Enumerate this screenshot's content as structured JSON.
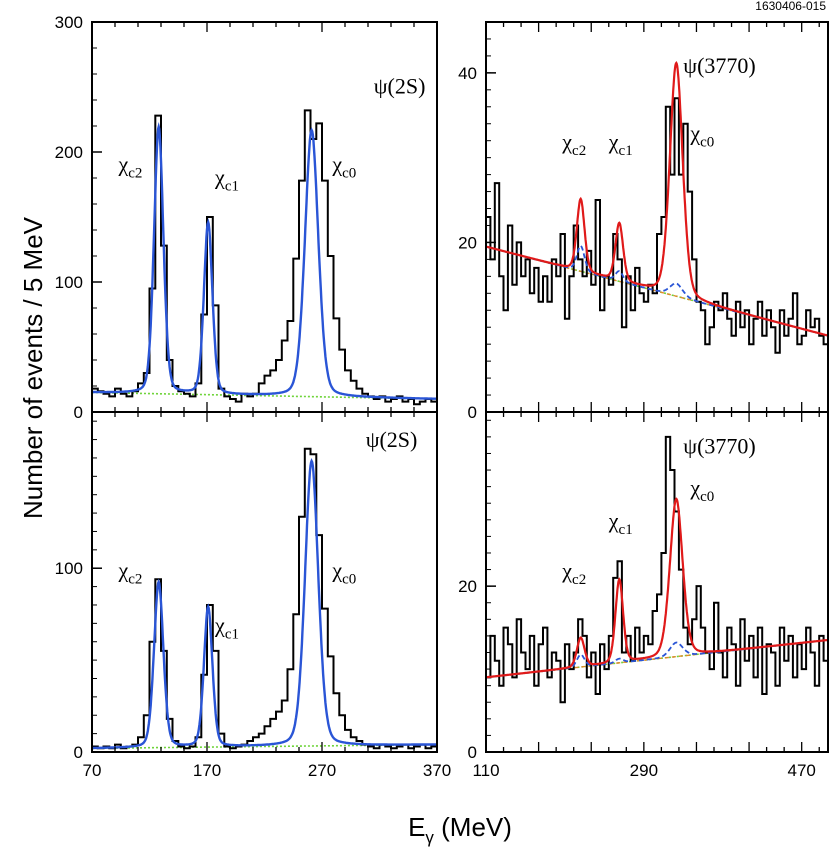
{
  "figure_id": "1630406-015",
  "ylabel": "Number of events / 5 MeV",
  "xlabel_main": "E",
  "xlabel_sub": "γ",
  "xlabel_unit": " (MeV)",
  "colors": {
    "histogram": "#000000",
    "fit_blue": "#2a55d6",
    "fit_red": "#e01a1a",
    "background_green": "#6fd43a",
    "background_orange": "#e08a2a",
    "component_blue_dashed": "#2a55d6"
  },
  "chart_data": [
    {
      "id": "top-left",
      "type": "line",
      "sample": "ψ(2S)",
      "xlim": [
        70,
        370
      ],
      "ylim": [
        0,
        300
      ],
      "xticks": [],
      "yticks": [
        0,
        100,
        200,
        300
      ],
      "peaks": [
        {
          "name": "χc2",
          "energy": 128,
          "height": 205,
          "sigma": 4.2
        },
        {
          "name": "χc1",
          "energy": 171,
          "height": 132,
          "sigma": 3.8
        },
        {
          "name": "χc0",
          "energy": 261,
          "height": 205,
          "sigma": 6.0
        }
      ],
      "background": [
        15,
        10
      ],
      "histogram": [
        [
          70,
          18
        ],
        [
          75,
          16
        ],
        [
          80,
          14
        ],
        [
          85,
          12
        ],
        [
          90,
          18
        ],
        [
          95,
          14
        ],
        [
          100,
          12
        ],
        [
          105,
          16
        ],
        [
          110,
          22
        ],
        [
          115,
          30
        ],
        [
          120,
          95
        ],
        [
          125,
          228
        ],
        [
          130,
          128
        ],
        [
          135,
          40
        ],
        [
          140,
          20
        ],
        [
          145,
          16
        ],
        [
          150,
          14
        ],
        [
          155,
          12
        ],
        [
          160,
          22
        ],
        [
          165,
          75
        ],
        [
          170,
          150
        ],
        [
          175,
          82
        ],
        [
          180,
          18
        ],
        [
          185,
          12
        ],
        [
          190,
          10
        ],
        [
          195,
          8
        ],
        [
          200,
          14
        ],
        [
          205,
          12
        ],
        [
          210,
          14
        ],
        [
          215,
          22
        ],
        [
          220,
          28
        ],
        [
          225,
          32
        ],
        [
          230,
          40
        ],
        [
          235,
          55
        ],
        [
          240,
          70
        ],
        [
          245,
          118
        ],
        [
          250,
          178
        ],
        [
          255,
          232
        ],
        [
          260,
          210
        ],
        [
          265,
          222
        ],
        [
          270,
          178
        ],
        [
          275,
          120
        ],
        [
          280,
          72
        ],
        [
          285,
          48
        ],
        [
          290,
          32
        ],
        [
          295,
          24
        ],
        [
          300,
          18
        ],
        [
          305,
          14
        ],
        [
          310,
          12
        ],
        [
          315,
          10
        ],
        [
          320,
          12
        ],
        [
          325,
          8
        ],
        [
          330,
          10
        ],
        [
          335,
          12
        ],
        [
          340,
          8
        ],
        [
          345,
          10
        ],
        [
          350,
          6
        ],
        [
          355,
          8
        ],
        [
          360,
          10
        ],
        [
          365,
          8
        ]
      ],
      "labels": [
        {
          "text": "ψ(2S)",
          "sub": "",
          "x": 315,
          "y": 245
        },
        {
          "text": "χ",
          "sub": "c2",
          "x": 93,
          "y": 185
        },
        {
          "text": "χ",
          "sub": "c1",
          "x": 177,
          "y": 175
        },
        {
          "text": "χ",
          "sub": "c0",
          "x": 279,
          "y": 185
        }
      ]
    },
    {
      "id": "top-right",
      "type": "line",
      "sample": "ψ(3770)",
      "xlim": [
        110,
        500
      ],
      "ylim": [
        0,
        46
      ],
      "xticks": [],
      "yticks": [
        0,
        20,
        40
      ],
      "peaks": [
        {
          "name": "χc2",
          "energy": 218,
          "height": 8.5,
          "sigma": 4.5,
          "blue": 3.0
        },
        {
          "name": "χc1",
          "energy": 262,
          "height": 6.8,
          "sigma": 4.5,
          "blue": 1.2
        },
        {
          "name": "χc0",
          "energy": 327,
          "height": 27.5,
          "sigma": 7.5,
          "blue": 1.5
        }
      ],
      "background": [
        19.5,
        9.0
      ],
      "histogram": [
        [
          110,
          23
        ],
        [
          115,
          18
        ],
        [
          120,
          27
        ],
        [
          125,
          16
        ],
        [
          130,
          12
        ],
        [
          135,
          22
        ],
        [
          140,
          15
        ],
        [
          145,
          20
        ],
        [
          150,
          16
        ],
        [
          155,
          18
        ],
        [
          160,
          14
        ],
        [
          165,
          17
        ],
        [
          170,
          13
        ],
        [
          175,
          16
        ],
        [
          180,
          13
        ],
        [
          185,
          18
        ],
        [
          190,
          16
        ],
        [
          195,
          21
        ],
        [
          200,
          11
        ],
        [
          205,
          16
        ],
        [
          210,
          22
        ],
        [
          215,
          18
        ],
        [
          220,
          16
        ],
        [
          225,
          19
        ],
        [
          230,
          15
        ],
        [
          235,
          25
        ],
        [
          240,
          12
        ],
        [
          245,
          16
        ],
        [
          250,
          15
        ],
        [
          255,
          21
        ],
        [
          260,
          18
        ],
        [
          265,
          10
        ],
        [
          270,
          16
        ],
        [
          275,
          12
        ],
        [
          280,
          17
        ],
        [
          285,
          14
        ],
        [
          290,
          13
        ],
        [
          295,
          15
        ],
        [
          300,
          14
        ],
        [
          305,
          21
        ],
        [
          310,
          23
        ],
        [
          315,
          36
        ],
        [
          320,
          28
        ],
        [
          325,
          37
        ],
        [
          330,
          28
        ],
        [
          335,
          34
        ],
        [
          340,
          26
        ],
        [
          345,
          18
        ],
        [
          350,
          13
        ],
        [
          355,
          12
        ],
        [
          360,
          8
        ],
        [
          365,
          10
        ],
        [
          370,
          13
        ],
        [
          375,
          12
        ],
        [
          380,
          14
        ],
        [
          385,
          11
        ],
        [
          390,
          9
        ],
        [
          395,
          13
        ],
        [
          400,
          10
        ],
        [
          405,
          12
        ],
        [
          410,
          8
        ],
        [
          415,
          11
        ],
        [
          420,
          13
        ],
        [
          425,
          9
        ],
        [
          430,
          12
        ],
        [
          435,
          10
        ],
        [
          440,
          7
        ],
        [
          445,
          12
        ],
        [
          450,
          9
        ],
        [
          455,
          11
        ],
        [
          460,
          14
        ],
        [
          465,
          8
        ],
        [
          470,
          9
        ],
        [
          475,
          12
        ],
        [
          480,
          10
        ],
        [
          485,
          11
        ],
        [
          490,
          9
        ],
        [
          495,
          8
        ]
      ],
      "labels": [
        {
          "text": "ψ(3770)",
          "sub": "",
          "x": 335,
          "y": 40
        },
        {
          "text": "χ",
          "sub": "c2",
          "x": 197,
          "y": 31
        },
        {
          "text": "χ",
          "sub": "c1",
          "x": 250,
          "y": 31
        },
        {
          "text": "χ",
          "sub": "c0",
          "x": 343,
          "y": 32
        }
      ]
    },
    {
      "id": "bottom-left",
      "type": "line",
      "sample": "ψ(2S)",
      "xlim": [
        70,
        370
      ],
      "ylim": [
        0,
        185
      ],
      "xticks": [
        70,
        170,
        270,
        370
      ],
      "yticks": [
        0,
        100
      ],
      "peaks": [
        {
          "name": "χc2",
          "energy": 128,
          "height": 90,
          "sigma": 4.2
        },
        {
          "name": "χc1",
          "energy": 171,
          "height": 76,
          "sigma": 3.8
        },
        {
          "name": "χc0",
          "energy": 261,
          "height": 155,
          "sigma": 6.0
        }
      ],
      "background": [
        2,
        4
      ],
      "histogram": [
        [
          70,
          3
        ],
        [
          75,
          2
        ],
        [
          80,
          3
        ],
        [
          85,
          2
        ],
        [
          90,
          4
        ],
        [
          95,
          2
        ],
        [
          100,
          3
        ],
        [
          105,
          4
        ],
        [
          110,
          8
        ],
        [
          115,
          20
        ],
        [
          120,
          60
        ],
        [
          125,
          94
        ],
        [
          130,
          55
        ],
        [
          135,
          18
        ],
        [
          140,
          6
        ],
        [
          145,
          3
        ],
        [
          150,
          2
        ],
        [
          155,
          3
        ],
        [
          160,
          8
        ],
        [
          165,
          42
        ],
        [
          170,
          80
        ],
        [
          175,
          55
        ],
        [
          180,
          10
        ],
        [
          185,
          3
        ],
        [
          190,
          2
        ],
        [
          195,
          3
        ],
        [
          200,
          4
        ],
        [
          205,
          6
        ],
        [
          210,
          8
        ],
        [
          215,
          10
        ],
        [
          220,
          14
        ],
        [
          225,
          18
        ],
        [
          230,
          22
        ],
        [
          235,
          28
        ],
        [
          240,
          45
        ],
        [
          245,
          75
        ],
        [
          250,
          128
        ],
        [
          255,
          165
        ],
        [
          260,
          162
        ],
        [
          265,
          118
        ],
        [
          270,
          78
        ],
        [
          275,
          52
        ],
        [
          280,
          32
        ],
        [
          285,
          20
        ],
        [
          290,
          12
        ],
        [
          295,
          8
        ],
        [
          300,
          6
        ],
        [
          305,
          4
        ],
        [
          310,
          3
        ],
        [
          315,
          2
        ],
        [
          320,
          4
        ],
        [
          325,
          3
        ],
        [
          330,
          2
        ],
        [
          335,
          3
        ],
        [
          340,
          4
        ],
        [
          345,
          2
        ],
        [
          350,
          3
        ],
        [
          355,
          4
        ],
        [
          360,
          2
        ],
        [
          365,
          3
        ]
      ],
      "labels": [
        {
          "text": "ψ(2S)",
          "sub": "",
          "x": 308,
          "y": 166
        },
        {
          "text": "χ",
          "sub": "c2",
          "x": 93,
          "y": 95
        },
        {
          "text": "χ",
          "sub": "c1",
          "x": 177,
          "y": 65
        },
        {
          "text": "χ",
          "sub": "c0",
          "x": 279,
          "y": 95
        }
      ]
    },
    {
      "id": "bottom-right",
      "type": "line",
      "sample": "ψ(3770)",
      "xlim": [
        110,
        500
      ],
      "ylim": [
        0,
        41
      ],
      "xticks": [
        110,
        290,
        470
      ],
      "yticks": [
        0,
        20
      ],
      "peaks": [
        {
          "name": "χc2",
          "energy": 218,
          "height": 3.5,
          "sigma": 4.5,
          "blue": 1.5
        },
        {
          "name": "χc1",
          "energy": 262,
          "height": 10.0,
          "sigma": 4.5,
          "blue": 0.5
        },
        {
          "name": "χc0",
          "energy": 327,
          "height": 19.0,
          "sigma": 7.5,
          "blue": 1.7
        }
      ],
      "background": [
        9.0,
        13.5
      ],
      "histogram": [
        [
          110,
          9
        ],
        [
          115,
          14
        ],
        [
          120,
          11
        ],
        [
          125,
          8
        ],
        [
          130,
          15
        ],
        [
          135,
          13
        ],
        [
          140,
          9
        ],
        [
          145,
          16
        ],
        [
          150,
          12
        ],
        [
          155,
          10
        ],
        [
          160,
          14
        ],
        [
          165,
          8
        ],
        [
          170,
          13
        ],
        [
          175,
          15
        ],
        [
          180,
          9
        ],
        [
          185,
          12
        ],
        [
          190,
          11
        ],
        [
          195,
          6
        ],
        [
          200,
          13
        ],
        [
          205,
          10
        ],
        [
          210,
          12
        ],
        [
          215,
          16
        ],
        [
          220,
          14
        ],
        [
          225,
          9
        ],
        [
          230,
          12
        ],
        [
          235,
          7
        ],
        [
          240,
          13
        ],
        [
          245,
          10
        ],
        [
          250,
          14
        ],
        [
          255,
          21
        ],
        [
          260,
          23
        ],
        [
          265,
          12
        ],
        [
          270,
          14
        ],
        [
          275,
          11
        ],
        [
          280,
          15
        ],
        [
          285,
          12
        ],
        [
          290,
          14
        ],
        [
          295,
          13
        ],
        [
          300,
          17
        ],
        [
          305,
          19
        ],
        [
          310,
          24
        ],
        [
          315,
          38
        ],
        [
          320,
          34
        ],
        [
          325,
          29
        ],
        [
          330,
          22
        ],
        [
          335,
          15
        ],
        [
          340,
          13
        ],
        [
          345,
          16
        ],
        [
          350,
          20
        ],
        [
          355,
          15
        ],
        [
          360,
          12
        ],
        [
          365,
          10
        ],
        [
          370,
          18
        ],
        [
          375,
          12
        ],
        [
          380,
          9
        ],
        [
          385,
          15
        ],
        [
          390,
          13
        ],
        [
          395,
          8
        ],
        [
          400,
          16
        ],
        [
          405,
          11
        ],
        [
          410,
          14
        ],
        [
          415,
          9
        ],
        [
          420,
          15
        ],
        [
          425,
          7
        ],
        [
          430,
          13
        ],
        [
          435,
          12
        ],
        [
          440,
          8
        ],
        [
          445,
          15
        ],
        [
          450,
          11
        ],
        [
          455,
          14
        ],
        [
          460,
          9
        ],
        [
          465,
          13
        ],
        [
          470,
          10
        ],
        [
          475,
          15
        ],
        [
          480,
          12
        ],
        [
          485,
          8
        ],
        [
          490,
          14
        ],
        [
          495,
          11
        ]
      ],
      "labels": [
        {
          "text": "ψ(3770)",
          "sub": "",
          "x": 335,
          "y": 36
        },
        {
          "text": "χ",
          "sub": "c2",
          "x": 197,
          "y": 21
        },
        {
          "text": "χ",
          "sub": "c1",
          "x": 250,
          "y": 27
        },
        {
          "text": "χ",
          "sub": "c0",
          "x": 343,
          "y": 31
        }
      ]
    }
  ]
}
